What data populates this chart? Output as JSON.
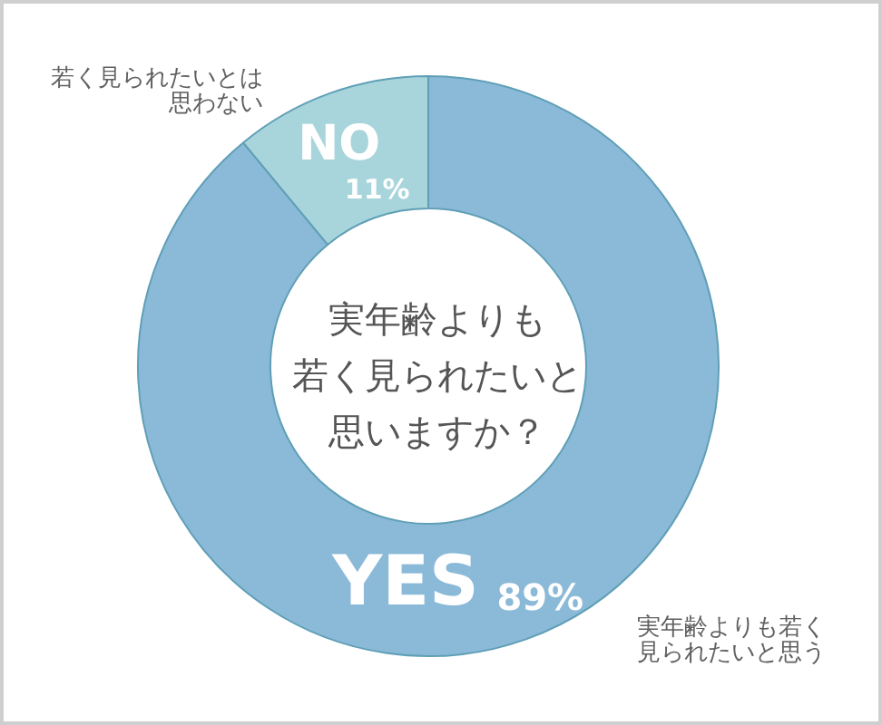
{
  "chart_data": {
    "type": "donut",
    "title": "実年齢よりも若く見られたいと思いますか？",
    "categories": [
      "YES",
      "NO"
    ],
    "values": [
      89,
      11
    ],
    "value_labels": [
      "89%",
      "11%"
    ],
    "colors": [
      "#8bbad8",
      "#a8d5db"
    ],
    "annotations": [
      "実年齢よりも若く見られたいと思う",
      "若く見られたいとは思わない"
    ]
  }
}
